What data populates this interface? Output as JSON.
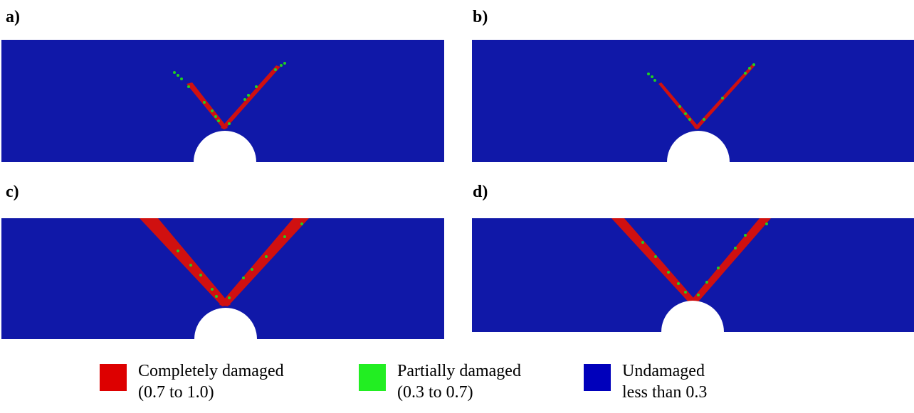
{
  "panels": [
    {
      "id": "a",
      "label": "a)",
      "crack": "short-red-tips"
    },
    {
      "id": "b",
      "label": "b)",
      "crack": "short-thin"
    },
    {
      "id": "c",
      "label": "c)",
      "crack": "full-length-wide"
    },
    {
      "id": "d",
      "label": "d)",
      "crack": "full-length-narrow"
    }
  ],
  "legend": [
    {
      "color": "#dd0000",
      "label": "Completely damaged",
      "range": "(0.7 to 1.0)"
    },
    {
      "color": "#22ee22",
      "label": "Partially damaged",
      "range": "(0.3 to 0.7)"
    },
    {
      "color": "#0000bb",
      "label": "Undamaged",
      "range": "less than 0.3"
    }
  ],
  "colors": {
    "undamaged": "#1018a8",
    "damaged": "#d01010",
    "partial": "#20d020",
    "hole": "#ffffff"
  }
}
